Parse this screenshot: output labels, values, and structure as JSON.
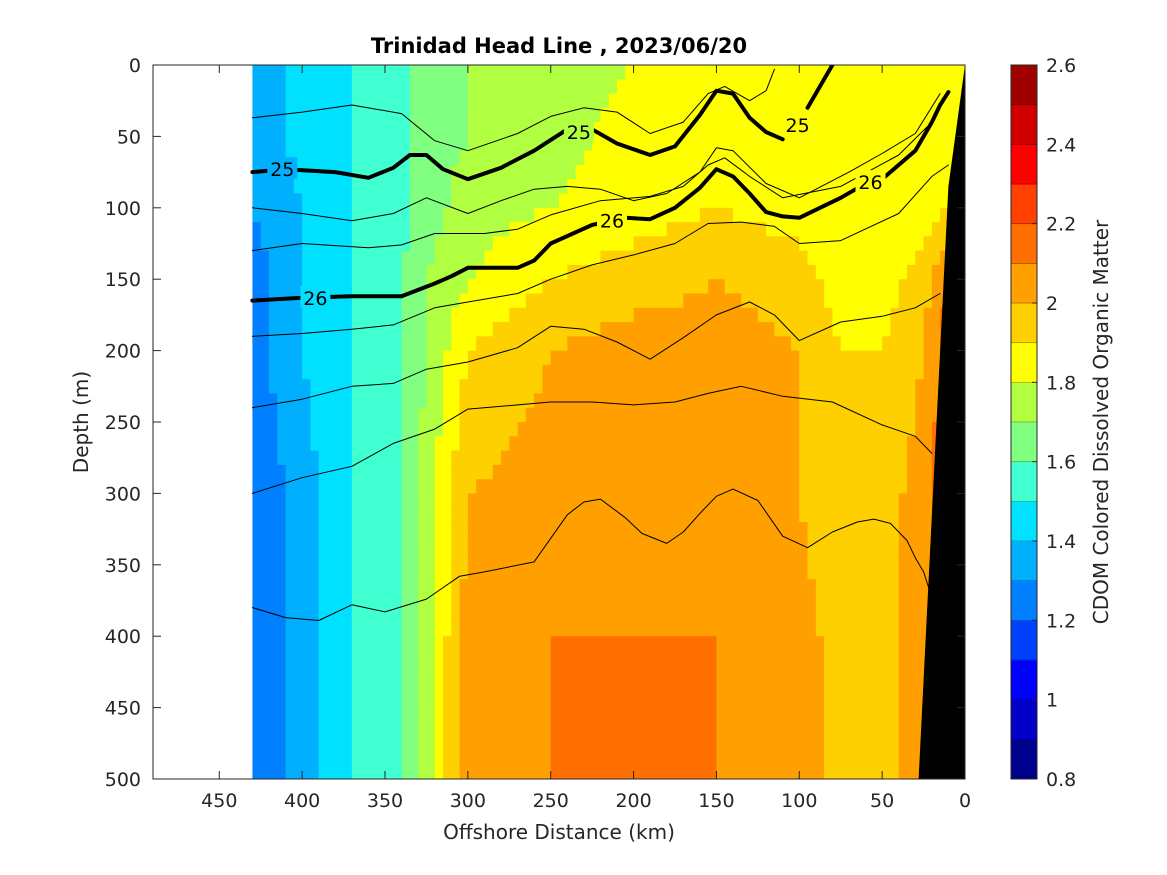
{
  "chart_data": {
    "type": "heatmap",
    "subtype": "filled-contour section with density contour overlay",
    "title": "Trinidad Head Line , 2023/06/20",
    "xlabel": "Offshore Distance (km)",
    "ylabel": "Depth (m)",
    "x_reversed": true,
    "y_reversed": true,
    "xlim": [
      0,
      490
    ],
    "ylim": [
      0,
      500
    ],
    "x_ticks": [
      450,
      400,
      350,
      300,
      250,
      200,
      150,
      100,
      50,
      0
    ],
    "y_ticks": [
      0,
      50,
      100,
      150,
      200,
      250,
      300,
      350,
      400,
      450,
      500
    ],
    "data_extent_km": [
      0,
      430
    ],
    "colorbar": {
      "label": "CDOM Colored Dissolved Organic Matter",
      "min": 0.8,
      "max": 2.6,
      "step": 0.1,
      "ticks": [
        0.8,
        1,
        1.2,
        1.4,
        1.6,
        1.8,
        2,
        2.2,
        2.4,
        2.6
      ],
      "colors": [
        "#00008f",
        "#0000c8",
        "#0000ff",
        "#0040ff",
        "#0080ff",
        "#00b0ff",
        "#00e0ff",
        "#40ffd0",
        "#80ff80",
        "#b0ff40",
        "#ffff00",
        "#ffd000",
        "#ffa000",
        "#ff7000",
        "#ff4000",
        "#ff0000",
        "#d00000",
        "#9f0000"
      ]
    },
    "cdom_field": {
      "x": [
        430,
        400,
        370,
        340,
        325,
        300,
        250,
        200,
        150,
        100,
        75,
        50,
        25,
        10
      ],
      "depth": [
        0,
        50,
        100,
        150,
        200,
        300,
        400,
        500
      ],
      "values": [
        [
          1.3,
          1.45,
          1.5,
          1.55,
          1.65,
          1.7,
          1.75,
          1.8,
          1.85,
          1.85,
          1.85,
          1.8,
          1.85,
          1.85
        ],
        [
          1.3,
          1.45,
          1.5,
          1.55,
          1.65,
          1.7,
          1.75,
          1.85,
          1.85,
          1.85,
          1.85,
          1.8,
          1.85,
          1.85
        ],
        [
          1.3,
          1.4,
          1.5,
          1.55,
          1.65,
          1.75,
          1.8,
          1.85,
          1.9,
          1.85,
          1.8,
          1.85,
          1.85,
          1.9
        ],
        [
          1.25,
          1.4,
          1.5,
          1.6,
          1.7,
          1.8,
          1.9,
          1.95,
          2.0,
          1.95,
          1.85,
          1.85,
          1.95,
          2.1
        ],
        [
          1.25,
          1.4,
          1.5,
          1.6,
          1.7,
          1.9,
          2.0,
          2.05,
          2.05,
          2.0,
          1.9,
          1.9,
          2.0,
          2.15
        ],
        [
          1.2,
          1.35,
          1.5,
          1.6,
          1.75,
          2.0,
          2.05,
          2.05,
          2.05,
          2.0,
          1.9,
          1.95,
          2.05,
          2.2
        ],
        [
          1.2,
          1.35,
          1.5,
          1.6,
          1.75,
          2.05,
          2.1,
          2.1,
          2.1,
          2.05,
          1.95,
          1.95,
          2.05,
          2.2
        ],
        [
          1.2,
          1.35,
          1.5,
          1.6,
          1.75,
          2.05,
          2.1,
          2.1,
          2.1,
          2.05,
          1.95,
          1.95,
          2.05,
          2.2
        ]
      ]
    },
    "density_contours": [
      {
        "label": "25",
        "bold": true,
        "segments": [
          [
            [
              430,
              75
            ],
            [
              410,
              73
            ],
            [
              380,
              75
            ],
            [
              360,
              79
            ],
            [
              345,
              72
            ],
            [
              335,
              63
            ],
            [
              325,
              63
            ],
            [
              315,
              73
            ],
            [
              300,
              80
            ],
            [
              280,
              72
            ],
            [
              260,
              60
            ],
            [
              240,
              45
            ],
            [
              225,
              45
            ],
            [
              210,
              55
            ],
            [
              190,
              63
            ],
            [
              175,
              57
            ],
            [
              160,
              35
            ],
            [
              150,
              18
            ],
            [
              140,
              20
            ],
            [
              130,
              37
            ],
            [
              120,
              47
            ],
            [
              110,
              52
            ]
          ],
          [
            [
              95,
              30
            ],
            [
              85,
              10
            ],
            [
              80,
              0
            ]
          ]
        ]
      },
      {
        "label": "26",
        "bold": true,
        "segments": [
          [
            [
              430,
              165
            ],
            [
              400,
              163
            ],
            [
              370,
              162
            ],
            [
              340,
              162
            ],
            [
              320,
              153
            ],
            [
              310,
              148
            ],
            [
              300,
              142
            ],
            [
              270,
              142
            ],
            [
              260,
              137
            ],
            [
              250,
              125
            ],
            [
              225,
              112
            ],
            [
              205,
              107
            ],
            [
              190,
              108
            ],
            [
              175,
              100
            ],
            [
              160,
              86
            ],
            [
              150,
              73
            ],
            [
              140,
              78
            ],
            [
              130,
              90
            ],
            [
              120,
              103
            ],
            [
              110,
              106
            ],
            [
              100,
              107
            ],
            [
              75,
              93
            ],
            [
              60,
              83
            ],
            [
              50,
              80
            ],
            [
              30,
              60
            ],
            [
              20,
              40
            ],
            [
              15,
              28
            ],
            [
              10,
              19
            ]
          ]
        ]
      },
      {
        "label": "",
        "bold": false,
        "segments": [
          [
            [
              430,
              37
            ],
            [
              400,
              33
            ],
            [
              370,
              28
            ],
            [
              340,
              34
            ],
            [
              320,
              53
            ],
            [
              300,
              60
            ],
            [
              270,
              48
            ],
            [
              250,
              36
            ],
            [
              230,
              30
            ],
            [
              210,
              33
            ],
            [
              190,
              48
            ],
            [
              170,
              40
            ],
            [
              155,
              20
            ],
            [
              145,
              15
            ],
            [
              130,
              25
            ],
            [
              120,
              18
            ],
            [
              115,
              3
            ]
          ],
          [
            [
              430,
              100
            ],
            [
              400,
              104
            ],
            [
              370,
              109
            ],
            [
              345,
              104
            ],
            [
              325,
              93
            ],
            [
              300,
              104
            ],
            [
              280,
              95
            ],
            [
              260,
              87
            ],
            [
              240,
              85
            ],
            [
              220,
              87
            ],
            [
              200,
              95
            ],
            [
              180,
              90
            ],
            [
              160,
              75
            ],
            [
              150,
              58
            ],
            [
              140,
              60
            ],
            [
              120,
              83
            ],
            [
              100,
              93
            ],
            [
              70,
              75
            ],
            [
              50,
              62
            ],
            [
              30,
              48
            ],
            [
              15,
              20
            ]
          ],
          [
            [
              430,
              130
            ],
            [
              400,
              125
            ],
            [
              360,
              128
            ],
            [
              340,
              126
            ],
            [
              320,
              118
            ],
            [
              290,
              118
            ],
            [
              270,
              115
            ],
            [
              250,
              105
            ],
            [
              220,
              95
            ],
            [
              190,
              92
            ],
            [
              170,
              85
            ],
            [
              155,
              70
            ],
            [
              145,
              65
            ],
            [
              130,
              78
            ],
            [
              110,
              93
            ],
            [
              75,
              85
            ],
            [
              40,
              63
            ],
            [
              20,
              40
            ],
            [
              10,
              19
            ]
          ],
          [
            [
              430,
              190
            ],
            [
              400,
              188
            ],
            [
              370,
              185
            ],
            [
              345,
              182
            ],
            [
              320,
              170
            ],
            [
              300,
              166
            ],
            [
              270,
              160
            ],
            [
              250,
              150
            ],
            [
              225,
              140
            ],
            [
              200,
              133
            ],
            [
              175,
              125
            ],
            [
              155,
              111
            ],
            [
              135,
              110
            ],
            [
              115,
              113
            ],
            [
              100,
              125
            ],
            [
              75,
              123
            ],
            [
              40,
              104
            ],
            [
              20,
              78
            ],
            [
              10,
              70
            ]
          ],
          [
            [
              430,
              240
            ],
            [
              400,
              234
            ],
            [
              370,
              225
            ],
            [
              345,
              223
            ],
            [
              325,
              213
            ],
            [
              300,
              208
            ],
            [
              270,
              198
            ],
            [
              250,
              183
            ],
            [
              230,
              185
            ],
            [
              210,
              194
            ],
            [
              190,
              206
            ],
            [
              170,
              191
            ],
            [
              150,
              175
            ],
            [
              130,
              166
            ],
            [
              115,
              175
            ],
            [
              100,
              193
            ],
            [
              75,
              180
            ],
            [
              50,
              176
            ],
            [
              30,
              170
            ],
            [
              15,
              160
            ]
          ],
          [
            [
              430,
              300
            ],
            [
              400,
              289
            ],
            [
              370,
              281
            ],
            [
              345,
              265
            ],
            [
              320,
              255
            ],
            [
              300,
              241
            ],
            [
              270,
              238
            ],
            [
              250,
              236
            ],
            [
              225,
              236
            ],
            [
              200,
              238
            ],
            [
              175,
              236
            ],
            [
              155,
              230
            ],
            [
              135,
              225
            ],
            [
              110,
              232
            ],
            [
              80,
              236
            ],
            [
              50,
              252
            ],
            [
              30,
              260
            ],
            [
              20,
              272
            ]
          ],
          [
            [
              430,
              380
            ],
            [
              410,
              387
            ],
            [
              390,
              389
            ],
            [
              370,
              378
            ],
            [
              350,
              383
            ],
            [
              325,
              374
            ],
            [
              305,
              358
            ],
            [
              290,
              355
            ],
            [
              260,
              348
            ],
            [
              240,
              315
            ],
            [
              230,
              306
            ],
            [
              220,
              304
            ],
            [
              205,
              317
            ],
            [
              195,
              328
            ],
            [
              180,
              335
            ],
            [
              170,
              327
            ],
            [
              160,
              314
            ],
            [
              150,
              302
            ],
            [
              140,
              297
            ],
            [
              125,
              305
            ],
            [
              110,
              330
            ],
            [
              95,
              338
            ],
            [
              80,
              327
            ],
            [
              65,
              320
            ],
            [
              55,
              318
            ],
            [
              45,
              321
            ],
            [
              35,
              333
            ],
            [
              30,
              345
            ],
            [
              25,
              355
            ],
            [
              20,
              373
            ]
          ]
        ]
      }
    ],
    "contour_labels": [
      {
        "text": "25",
        "x": 412,
        "y": 73
      },
      {
        "text": "26",
        "x": 392,
        "y": 163
      },
      {
        "text": "25",
        "x": 233,
        "y": 47
      },
      {
        "text": "26",
        "x": 213,
        "y": 109
      },
      {
        "text": "25",
        "x": 101,
        "y": 42
      },
      {
        "text": "26",
        "x": 57,
        "y": 82
      }
    ],
    "bathymetry_boundary": [
      [
        0,
        0
      ],
      [
        0,
        500
      ],
      [
        28,
        500
      ],
      [
        10,
        85
      ],
      [
        0,
        0
      ]
    ]
  }
}
